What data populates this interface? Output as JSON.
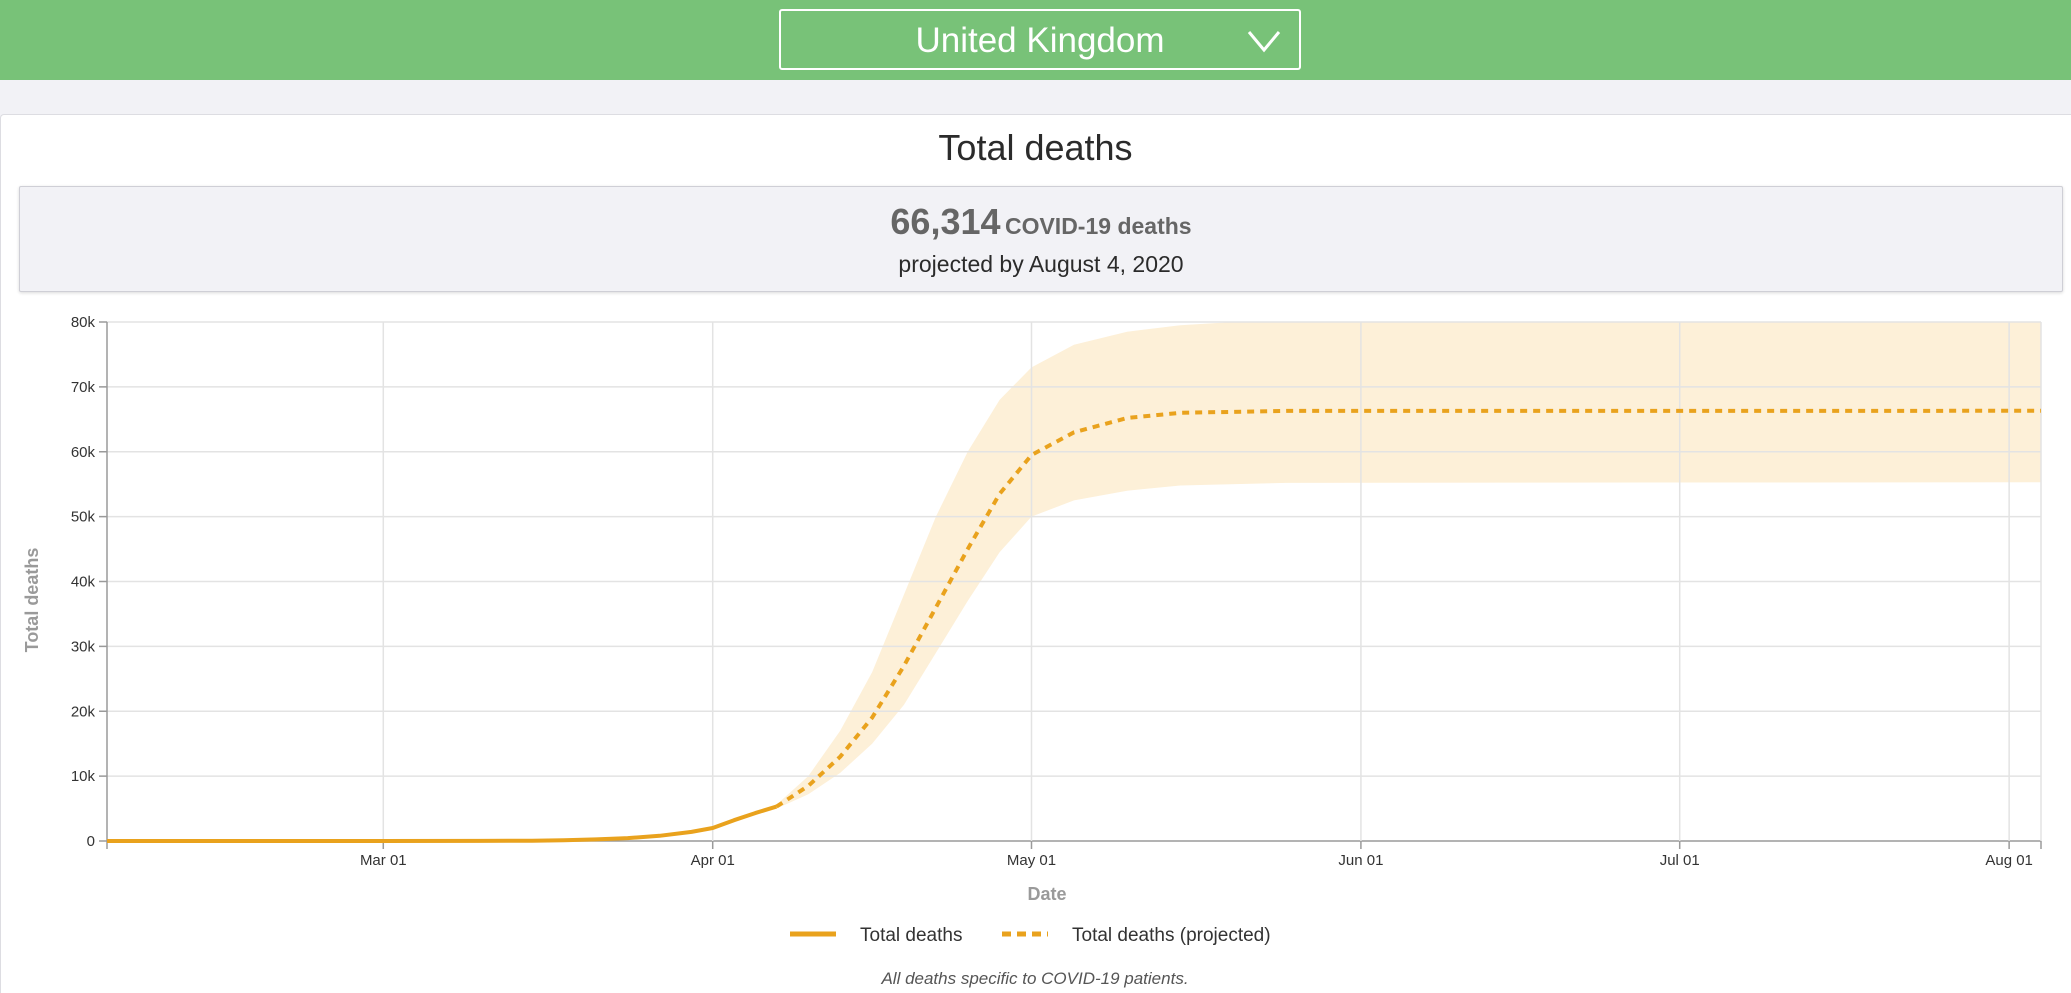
{
  "header": {
    "country_selected": "United Kingdom",
    "accent_color": "#78c278"
  },
  "panel": {
    "title": "Total deaths",
    "summary": {
      "number": "66,314",
      "unit_label": "COVID-19 deaths",
      "projection_text": "projected by August 4, 2020"
    }
  },
  "chart_data": {
    "type": "line",
    "title": "",
    "xlabel": "Date",
    "ylabel": "Total deaths",
    "x_range": [
      "2020-02-04",
      "2020-08-04"
    ],
    "ylim": [
      0,
      80000
    ],
    "y_ticks": [
      0,
      10000,
      20000,
      30000,
      40000,
      50000,
      60000,
      70000,
      80000
    ],
    "y_tick_labels": [
      "0",
      "10k",
      "20k",
      "30k",
      "40k",
      "50k",
      "60k",
      "70k",
      "80k"
    ],
    "x_ticks": [
      "2020-03-01",
      "2020-04-01",
      "2020-05-01",
      "2020-06-01",
      "2020-07-01",
      "2020-08-01"
    ],
    "x_tick_labels": [
      "Mar 01",
      "Apr 01",
      "May 01",
      "Jun 01",
      "Jul 01",
      "Aug 01"
    ],
    "grid": true,
    "legend_position": "bottom-center",
    "footnote": "All deaths specific to COVID-19 patients.",
    "series": [
      {
        "name": "Total deaths",
        "style": "solid",
        "color": "#e9a21d",
        "points": [
          [
            "2020-02-04",
            0
          ],
          [
            "2020-03-01",
            0
          ],
          [
            "2020-03-10",
            10
          ],
          [
            "2020-03-15",
            50
          ],
          [
            "2020-03-18",
            120
          ],
          [
            "2020-03-21",
            250
          ],
          [
            "2020-03-24",
            450
          ],
          [
            "2020-03-27",
            800
          ],
          [
            "2020-03-30",
            1400
          ],
          [
            "2020-04-01",
            2000
          ],
          [
            "2020-04-03",
            3200
          ],
          [
            "2020-04-05",
            4300
          ],
          [
            "2020-04-07",
            5300
          ]
        ]
      },
      {
        "name": "Total deaths (projected)",
        "style": "dashed",
        "color": "#e9a21d",
        "points": [
          [
            "2020-04-07",
            5300
          ],
          [
            "2020-04-10",
            8500
          ],
          [
            "2020-04-13",
            13000
          ],
          [
            "2020-04-16",
            19000
          ],
          [
            "2020-04-19",
            27000
          ],
          [
            "2020-04-22",
            36000
          ],
          [
            "2020-04-25",
            45000
          ],
          [
            "2020-04-28",
            53500
          ],
          [
            "2020-05-01",
            59500
          ],
          [
            "2020-05-05",
            63000
          ],
          [
            "2020-05-10",
            65200
          ],
          [
            "2020-05-15",
            66000
          ],
          [
            "2020-05-25",
            66300
          ],
          [
            "2020-08-04",
            66314
          ]
        ]
      }
    ],
    "uncertainty_band": {
      "color": "#fdf0d8",
      "upper": [
        [
          "2020-04-07",
          5600
        ],
        [
          "2020-04-10",
          10000
        ],
        [
          "2020-04-13",
          17000
        ],
        [
          "2020-04-16",
          26000
        ],
        [
          "2020-04-19",
          38000
        ],
        [
          "2020-04-22",
          50000
        ],
        [
          "2020-04-25",
          60000
        ],
        [
          "2020-04-28",
          68000
        ],
        [
          "2020-05-01",
          73000
        ],
        [
          "2020-05-05",
          76500
        ],
        [
          "2020-05-10",
          78500
        ],
        [
          "2020-05-15",
          79500
        ],
        [
          "2020-05-20",
          80000
        ],
        [
          "2020-08-04",
          80000
        ]
      ],
      "lower": [
        [
          "2020-04-07",
          5000
        ],
        [
          "2020-04-10",
          7200
        ],
        [
          "2020-04-13",
          10500
        ],
        [
          "2020-04-16",
          15000
        ],
        [
          "2020-04-19",
          21000
        ],
        [
          "2020-04-22",
          29000
        ],
        [
          "2020-04-25",
          37000
        ],
        [
          "2020-04-28",
          44500
        ],
        [
          "2020-05-01",
          50000
        ],
        [
          "2020-05-05",
          52500
        ],
        [
          "2020-05-10",
          54000
        ],
        [
          "2020-05-15",
          54800
        ],
        [
          "2020-05-25",
          55200
        ],
        [
          "2020-08-04",
          55300
        ]
      ]
    }
  }
}
